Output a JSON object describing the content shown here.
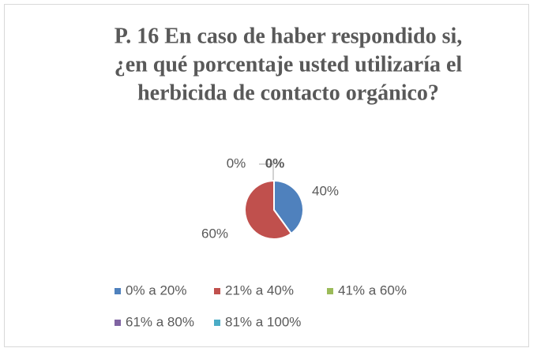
{
  "chart_data": {
    "type": "pie",
    "title": [
      "P. 16 En caso de haber respondido si,",
      "¿en qué porcentaje usted utilizaría el",
      "herbicida de contacto orgánico?"
    ],
    "categories": [
      "0% a 20%",
      "21% a 40%",
      "41% a 60%",
      "61% a 80%",
      "81% a 100%"
    ],
    "values": [
      40,
      60,
      0,
      0,
      0
    ],
    "value_labels": [
      "40%",
      "60%",
      "0%",
      "0%",
      null
    ],
    "colors": [
      "#4f81bd",
      "#c0504d",
      "#9bbb59",
      "#8064a2",
      "#4bacc6"
    ],
    "legend": "bottom"
  }
}
